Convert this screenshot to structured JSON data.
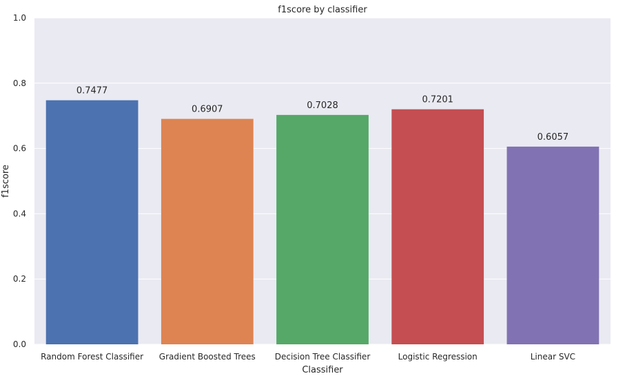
{
  "chart_data": {
    "type": "bar",
    "title": "f1score by classifier",
    "xlabel": "Classifier",
    "ylabel": "f1score",
    "categories": [
      "Random Forest Classifier",
      "Gradient Boosted Trees",
      "Decision Tree Classifier",
      "Logistic Regression",
      "Linear SVC"
    ],
    "values": [
      0.7477,
      0.6907,
      0.7028,
      0.7201,
      0.6057
    ],
    "data_labels": [
      "0.7477",
      "0.6907",
      "0.7028",
      "0.7201",
      "0.6057"
    ],
    "ylim": [
      0,
      1.0
    ],
    "yticks": [
      0.0,
      0.2,
      0.4,
      0.6,
      0.8,
      1.0
    ],
    "ytick_labels": [
      "0.0",
      "0.2",
      "0.4",
      "0.6",
      "0.8",
      "1.0"
    ],
    "grid": true,
    "background_color": "#eaeaf2",
    "colors": [
      "#4c72b0",
      "#dd8452",
      "#55a868",
      "#c44e52",
      "#8172b3"
    ]
  }
}
